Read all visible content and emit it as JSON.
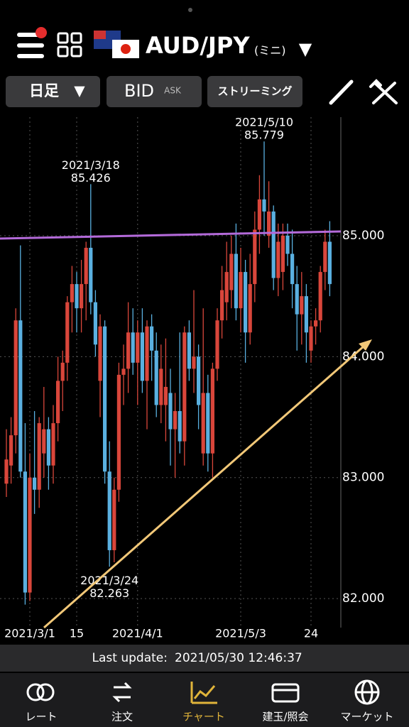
{
  "header": {
    "pair": "AUD/JPY",
    "size": "(ミニ)"
  },
  "toolbar": {
    "period": "日足",
    "bid": "BID",
    "ask": "ASK",
    "streaming": "ストリーミング"
  },
  "chart_data": {
    "type": "candlestick",
    "categories": [
      null,
      null,
      null,
      null,
      null,
      "2021/3/1",
      null,
      null,
      null,
      null,
      null,
      null,
      null,
      null,
      null,
      "15",
      null,
      null,
      null,
      null,
      null,
      null,
      null,
      null,
      null,
      null,
      null,
      null,
      "2021/4/1",
      null,
      null,
      null,
      null,
      null,
      null,
      null,
      null,
      null,
      null,
      null,
      null,
      null,
      null,
      null,
      null,
      null,
      null,
      null,
      null,
      null,
      "2021/5/3",
      null,
      null,
      null,
      null,
      null,
      null,
      null,
      null,
      null,
      null,
      null,
      null,
      null,
      null,
      "24",
      null,
      null,
      null,
      null
    ],
    "open": [
      82.95,
      83.1,
      83.35,
      84.3,
      83.05,
      82.05,
      83.0,
      82.9,
      83.2,
      83.4,
      83.1,
      83.45,
      83.8,
      83.95,
      84.45,
      84.6,
      84.4,
      84.6,
      84.9,
      84.45,
      83.8,
      84.25,
      83.05,
      82.4,
      82.9,
      83.85,
      83.9,
      84.2,
      83.95,
      84.2,
      83.8,
      84.25,
      84.05,
      83.6,
      83.6,
      83.7,
      83.4,
      83.55,
      83.3,
      84.2,
      83.9,
      84.0,
      83.2,
      83.7,
      83.2,
      83.9,
      84.3,
      84.45,
      84.55,
      84.85,
      84.4,
      84.7,
      84.2,
      84.6,
      85.05,
      85.3,
      85.0,
      85.2,
      84.65,
      84.7,
      85.0,
      84.85,
      84.6,
      84.35,
      84.5,
      84.05,
      84.25,
      84.3,
      84.7,
      84.95
    ],
    "high": [
      83.4,
      83.5,
      84.4,
      84.92,
      83.45,
      83.2,
      83.55,
      83.5,
      83.75,
      83.5,
      83.6,
      84.0,
      84.05,
      84.5,
      84.75,
      84.7,
      84.8,
      84.95,
      85.426,
      84.55,
      84.35,
      84.3,
      83.3,
      83.0,
      83.95,
      84.1,
      84.45,
      84.4,
      84.3,
      84.4,
      84.3,
      84.35,
      84.2,
      84.1,
      84.15,
      83.9,
      83.7,
      84.2,
      84.25,
      84.3,
      84.55,
      84.1,
      84.4,
      83.85,
      83.95,
      84.4,
      84.75,
      84.95,
      85.0,
      85.1,
      84.9,
      84.8,
      84.85,
      85.2,
      85.5,
      85.779,
      85.45,
      85.25,
      85.1,
      85.1,
      85.1,
      85.05,
      84.75,
      84.7,
      84.6,
      84.3,
      84.4,
      84.75,
      85.05,
      85.12
    ],
    "low": [
      82.84,
      82.95,
      83.2,
      83.0,
      81.95,
      81.98,
      82.7,
      82.75,
      83.0,
      82.9,
      82.95,
      83.3,
      83.55,
      83.8,
      84.2,
      84.2,
      84.2,
      84.3,
      84.35,
      84.0,
      83.5,
      82.95,
      82.263,
      82.3,
      82.8,
      83.6,
      83.7,
      83.85,
      83.6,
      83.7,
      83.4,
      83.8,
      83.5,
      83.45,
      83.3,
      83.1,
      83.0,
      83.2,
      83.1,
      83.8,
      83.7,
      83.4,
      83.1,
      83.05,
      83.0,
      83.8,
      84.15,
      84.3,
      84.4,
      84.3,
      84.2,
      83.95,
      84.1,
      84.45,
      84.85,
      85.0,
      84.9,
      84.55,
      84.5,
      84.55,
      84.75,
      84.4,
      84.05,
      84.1,
      83.95,
      83.95,
      84.1,
      84.2,
      84.55,
      84.5
    ],
    "close": [
      83.15,
      83.35,
      84.3,
      83.05,
      82.05,
      83.0,
      82.9,
      83.45,
      83.4,
      83.1,
      83.45,
      83.8,
      83.95,
      84.45,
      84.6,
      84.4,
      84.6,
      84.9,
      84.45,
      84.1,
      84.25,
      83.05,
      82.4,
      82.9,
      83.85,
      83.9,
      84.2,
      83.95,
      84.2,
      83.8,
      84.25,
      84.05,
      83.6,
      83.9,
      83.75,
      83.4,
      83.55,
      83.3,
      84.2,
      83.9,
      84.0,
      83.6,
      83.7,
      83.2,
      83.9,
      84.3,
      84.55,
      84.7,
      84.85,
      84.4,
      84.7,
      84.2,
      84.6,
      85.05,
      85.3,
      85.2,
      85.2,
      84.65,
      84.95,
      85.0,
      84.85,
      84.6,
      84.35,
      84.5,
      84.2,
      84.25,
      84.3,
      84.7,
      84.95,
      84.6
    ],
    "up_color": "#d9463b",
    "down_color": "#5ab0e0",
    "ylim": [
      81.76,
      85.98
    ],
    "yticks": [
      {
        "value": 82,
        "label": "82.000"
      },
      {
        "value": 83,
        "label": "83.000"
      },
      {
        "value": 84,
        "label": "84.000"
      },
      {
        "value": 85,
        "label": "85.000"
      }
    ],
    "grid": true,
    "annotations": [
      {
        "text": "2021/3/18",
        "value": 85.426
      },
      {
        "text": "2021/3/24",
        "value": 82.263
      },
      {
        "text": "2021/5/10",
        "value": 85.779
      }
    ]
  },
  "status": {
    "label": "Last update:",
    "time": "2021/05/30 12:46:37"
  },
  "tabs": [
    "レート",
    "注文",
    "チャート",
    "建玉/照会",
    "マーケット"
  ]
}
